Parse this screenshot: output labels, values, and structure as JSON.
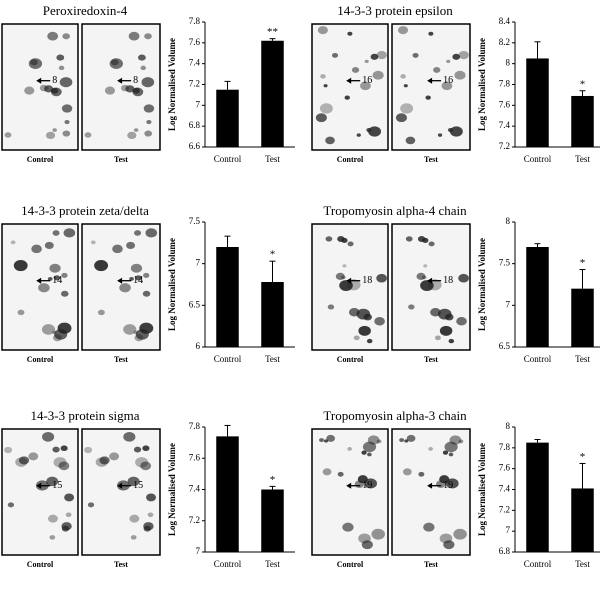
{
  "chart_data": [
    {
      "type": "bar",
      "ylabel": "Log Normalised Volume",
      "categories": [
        "Control",
        "Test"
      ],
      "values": [
        7.15,
        7.62
      ],
      "errors": [
        0.08,
        0.02
      ],
      "annotations": [
        null,
        "**"
      ],
      "color": "#000000",
      "ylim": [
        6.6,
        7.8
      ],
      "yticks": [
        6.6,
        6.8,
        7,
        7.2,
        7.4,
        7.6,
        7.8
      ]
    },
    {
      "type": "bar",
      "ylabel": "Log Normalised Volume",
      "categories": [
        "Control",
        "Test"
      ],
      "values": [
        8.05,
        7.69
      ],
      "errors": [
        0.16,
        0.05
      ],
      "annotations": [
        null,
        "*"
      ],
      "color": "#000000",
      "ylim": [
        7.2,
        8.4
      ],
      "yticks": [
        7.2,
        7.4,
        7.6,
        7.8,
        8,
        8.2,
        8.4
      ]
    },
    {
      "type": "bar",
      "ylabel": "Log Normalised Volume",
      "categories": [
        "Control",
        "Test"
      ],
      "values": [
        7.2,
        6.78
      ],
      "errors": [
        0.13,
        0.25
      ],
      "annotations": [
        null,
        "*"
      ],
      "color": "#000000",
      "ylim": [
        6,
        7.5
      ],
      "yticks": [
        6,
        6.5,
        7,
        7.5
      ]
    },
    {
      "type": "bar",
      "ylabel": "Log Normalised Volume",
      "categories": [
        "Control",
        "Test"
      ],
      "values": [
        7.7,
        7.2
      ],
      "errors": [
        0.04,
        0.23
      ],
      "annotations": [
        null,
        "*"
      ],
      "color": "#000000",
      "ylim": [
        6.5,
        8
      ],
      "yticks": [
        6.5,
        7,
        7.5,
        8
      ]
    },
    {
      "type": "bar",
      "ylabel": "Log Normalised Volume",
      "categories": [
        "Control",
        "Test"
      ],
      "values": [
        7.74,
        7.4
      ],
      "errors": [
        0.07,
        0.02
      ],
      "annotations": [
        null,
        "*"
      ],
      "color": "#000000",
      "ylim": [
        7,
        7.8
      ],
      "yticks": [
        7,
        7.2,
        7.4,
        7.6,
        7.8
      ]
    },
    {
      "type": "bar",
      "ylabel": "Log Normalised Volume",
      "categories": [
        "Control",
        "Test"
      ],
      "values": [
        7.85,
        7.41
      ],
      "errors": [
        0.03,
        0.24
      ],
      "annotations": [
        null,
        "*"
      ],
      "color": "#000000",
      "ylim": [
        6.8,
        8
      ],
      "yticks": [
        6.8,
        7,
        7.2,
        7.4,
        7.6,
        7.8,
        8
      ]
    }
  ],
  "gels": [
    {
      "title": "Peroxiredoxin-4",
      "spot": "8",
      "labels": [
        "Control",
        "Test"
      ]
    },
    {
      "title": "14-3-3 protein epsilon",
      "spot": "16",
      "labels": [
        "Control",
        "Test"
      ]
    },
    {
      "title": "14-3-3 protein zeta/delta",
      "spot": "14",
      "labels": [
        "Control",
        "Test"
      ]
    },
    {
      "title": "Tropomyosin alpha-4 chain",
      "spot": "18",
      "labels": [
        "Control",
        "Test"
      ]
    },
    {
      "title": "14-3-3 protein sigma",
      "spot": "15",
      "labels": [
        "Control",
        "Test"
      ]
    },
    {
      "title": "Tropomyosin alpha-3 chain",
      "spot": "19",
      "labels": [
        "Control",
        "Test"
      ]
    }
  ]
}
